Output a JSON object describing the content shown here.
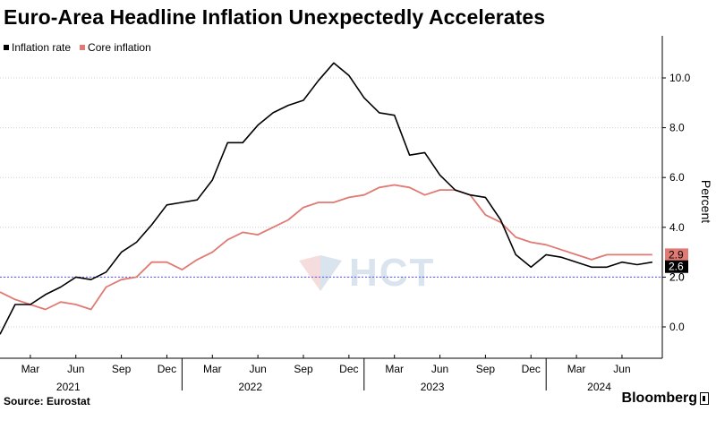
{
  "title": "Euro-Area Headline Inflation Unexpectedly Accelerates",
  "source": "Source: Eurostat",
  "brand": "Bloomberg",
  "watermark": "HCT",
  "colors": {
    "inflation": "#000000",
    "core": "#e07a72",
    "target_line": "#5555ee",
    "grid": "#d0d0d0"
  },
  "chart_data": {
    "type": "line",
    "ylabel": "Percent",
    "ylim": [
      -1.3,
      11.5
    ],
    "y_ticks": [
      "0.0",
      "2.0",
      "4.0",
      "6.0",
      "8.0",
      "10.0"
    ],
    "reference_line": 2.0,
    "reference_label": "2.0",
    "x_month_ticks": [
      "Mar",
      "Jun",
      "Sep",
      "Dec",
      "Mar",
      "Jun",
      "Sep",
      "Dec",
      "Mar",
      "Jun",
      "Sep",
      "Dec",
      "Mar",
      "Jun"
    ],
    "x_year_labels": [
      "2021",
      "2022",
      "2023",
      "2024"
    ],
    "x_start": "2021-01",
    "legend_position": "top-left",
    "series": [
      {
        "name": "Inflation rate",
        "last_label": "2.6",
        "values": [
          -0.3,
          0.9,
          0.9,
          1.3,
          1.6,
          2.0,
          1.9,
          2.2,
          3.0,
          3.4,
          4.1,
          4.9,
          5.0,
          5.1,
          5.9,
          7.4,
          7.4,
          8.1,
          8.6,
          8.9,
          9.1,
          9.9,
          10.6,
          10.1,
          9.2,
          8.6,
          8.5,
          6.9,
          7.0,
          6.1,
          5.5,
          5.3,
          5.2,
          4.3,
          2.9,
          2.4,
          2.9,
          2.8,
          2.6,
          2.4,
          2.4,
          2.6,
          2.5,
          2.6
        ]
      },
      {
        "name": "Core inflation",
        "last_label": "2.9",
        "values": [
          1.4,
          1.1,
          0.9,
          0.7,
          1.0,
          0.9,
          0.7,
          1.6,
          1.9,
          2.0,
          2.6,
          2.6,
          2.3,
          2.7,
          3.0,
          3.5,
          3.8,
          3.7,
          4.0,
          4.3,
          4.8,
          5.0,
          5.0,
          5.2,
          5.3,
          5.6,
          5.7,
          5.6,
          5.3,
          5.5,
          5.5,
          5.3,
          4.5,
          4.2,
          3.6,
          3.4,
          3.3,
          3.1,
          2.9,
          2.7,
          2.9,
          2.9,
          2.9,
          2.9
        ]
      }
    ]
  }
}
